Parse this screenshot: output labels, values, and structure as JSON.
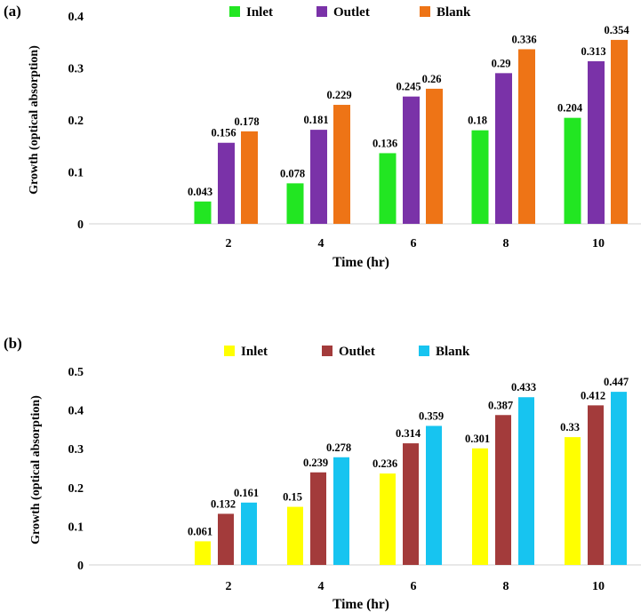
{
  "chart_data": [
    {
      "type": "bar",
      "panel_label": "(a)",
      "title": "",
      "xlabel": "Time (hr)",
      "ylabel": "Growth (optical absorption)",
      "categories": [
        "",
        "2",
        "4",
        "6",
        "8",
        "10"
      ],
      "ylim": [
        0,
        0.4
      ],
      "yticks": [
        "0",
        "0.1",
        "0.2",
        "0.3",
        "0.4"
      ],
      "ytick_values": [
        0,
        0.1,
        0.2,
        0.3,
        0.4
      ],
      "legend_position": "top-center",
      "grid": false,
      "series": [
        {
          "name": "Inlet",
          "color": "#22e622",
          "values": [
            null,
            0.043,
            0.078,
            0.136,
            0.18,
            0.204
          ],
          "labels": [
            "",
            "0.043",
            "0.078",
            "0.136",
            "0.18",
            "0.204"
          ]
        },
        {
          "name": "Outlet",
          "color": "#7a32a8",
          "values": [
            null,
            0.156,
            0.181,
            0.245,
            0.29,
            0.313
          ],
          "labels": [
            "",
            "0.156",
            "0.181",
            "0.245",
            "0.29",
            "0.313"
          ]
        },
        {
          "name": "Blank",
          "color": "#ee7416",
          "values": [
            null,
            0.178,
            0.229,
            0.26,
            0.336,
            0.354
          ],
          "labels": [
            "",
            "0.178",
            "0.229",
            "0.26",
            "0.336",
            "0.354"
          ]
        }
      ]
    },
    {
      "type": "bar",
      "panel_label": "(b)",
      "title": "",
      "xlabel": "Time (hr)",
      "ylabel": "Growth (optical absorption)",
      "categories": [
        "",
        "2",
        "4",
        "6",
        "8",
        "10"
      ],
      "ylim": [
        0,
        0.5
      ],
      "yticks": [
        "0",
        "0.1",
        "0.2",
        "0.3",
        "0.4",
        "0.5"
      ],
      "ytick_values": [
        0,
        0.1,
        0.2,
        0.3,
        0.4,
        0.5
      ],
      "legend_position": "top-center",
      "grid": false,
      "series": [
        {
          "name": "Inlet",
          "color": "#ffff00",
          "values": [
            null,
            0.061,
            0.15,
            0.236,
            0.301,
            0.33
          ],
          "labels": [
            "",
            "0.061",
            "0.15",
            "0.236",
            "0.301",
            "0.33"
          ]
        },
        {
          "name": "Outlet",
          "color": "#a33b3b",
          "values": [
            null,
            0.132,
            0.239,
            0.314,
            0.387,
            0.412
          ],
          "labels": [
            "",
            "0.132",
            "0.239",
            "0.314",
            "0.387",
            "0.412"
          ]
        },
        {
          "name": "Blank",
          "color": "#17c4f0",
          "values": [
            null,
            0.161,
            0.278,
            0.359,
            0.433,
            0.447
          ],
          "labels": [
            "",
            "0.161",
            "0.278",
            "0.359",
            "0.433",
            "0.447"
          ]
        }
      ]
    }
  ]
}
